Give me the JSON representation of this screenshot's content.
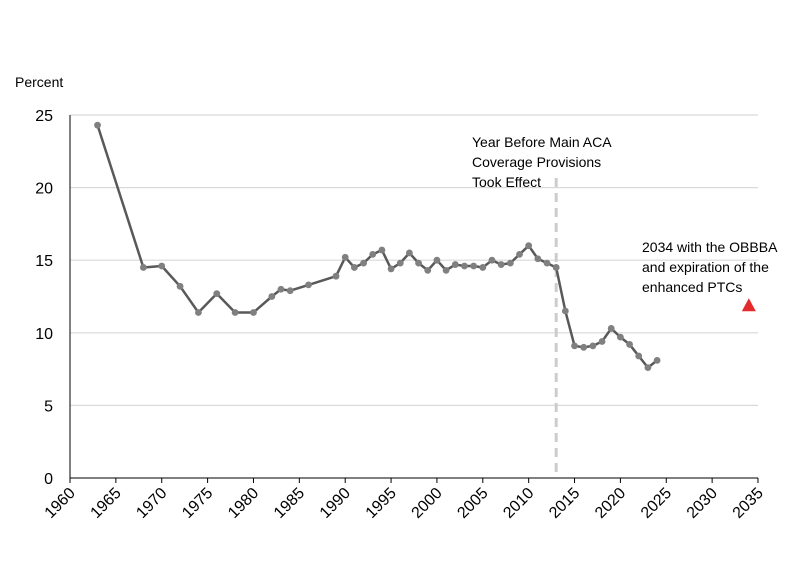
{
  "chart_data": {
    "type": "line",
    "ylabel": "Percent",
    "xlim": [
      1960,
      2035
    ],
    "ylim": [
      0,
      25
    ],
    "x_ticks": [
      "1960",
      "1965",
      "1970",
      "1975",
      "1980",
      "1985",
      "1990",
      "1995",
      "2000",
      "2005",
      "2010",
      "2015",
      "2020",
      "2025",
      "2030",
      "2035"
    ],
    "y_ticks": [
      "0",
      "5",
      "10",
      "15",
      "20",
      "25"
    ],
    "grid": "horizontal",
    "series": [
      {
        "x": [
          1963,
          1968,
          1970,
          1972,
          1974,
          1976,
          1978,
          1980,
          1982,
          1983,
          1984,
          1986,
          1989,
          1990,
          1991,
          1992,
          1993,
          1994,
          1995,
          1996,
          1997,
          1998,
          1999,
          2000,
          2001,
          2002,
          2003,
          2004,
          2005,
          2006,
          2007,
          2008,
          2009,
          2010,
          2011,
          2012,
          2013,
          2014,
          2015,
          2016,
          2017,
          2018,
          2019,
          2020,
          2021,
          2022,
          2023,
          2024
        ],
        "values": [
          24.3,
          14.5,
          14.6,
          13.2,
          11.4,
          12.7,
          11.4,
          11.4,
          12.5,
          13.0,
          12.9,
          13.3,
          13.9,
          15.2,
          14.5,
          14.8,
          15.4,
          15.7,
          14.4,
          14.8,
          15.5,
          14.8,
          14.3,
          15.0,
          14.3,
          14.7,
          14.6,
          14.6,
          14.5,
          15.0,
          14.7,
          14.8,
          15.4,
          16.0,
          15.1,
          14.8,
          14.5,
          11.5,
          9.1,
          9.0,
          9.1,
          9.4,
          10.3,
          9.7,
          9.2,
          8.4,
          7.6,
          8.1
        ],
        "color": "#595959"
      }
    ],
    "projection": {
      "x": 2034,
      "value": 11.9,
      "marker": "triangle",
      "color": "#e32b2b"
    },
    "vline": {
      "x": 2013,
      "style": "dashed",
      "color": "#cccccc"
    },
    "annotations": [
      {
        "lines": [
          "Year Before Main ACA",
          "Coverage Provisions",
          "Took Effect"
        ]
      },
      {
        "lines": [
          "2034 with the OBBBA",
          "and expiration of the",
          "enhanced PTCs"
        ]
      }
    ]
  }
}
